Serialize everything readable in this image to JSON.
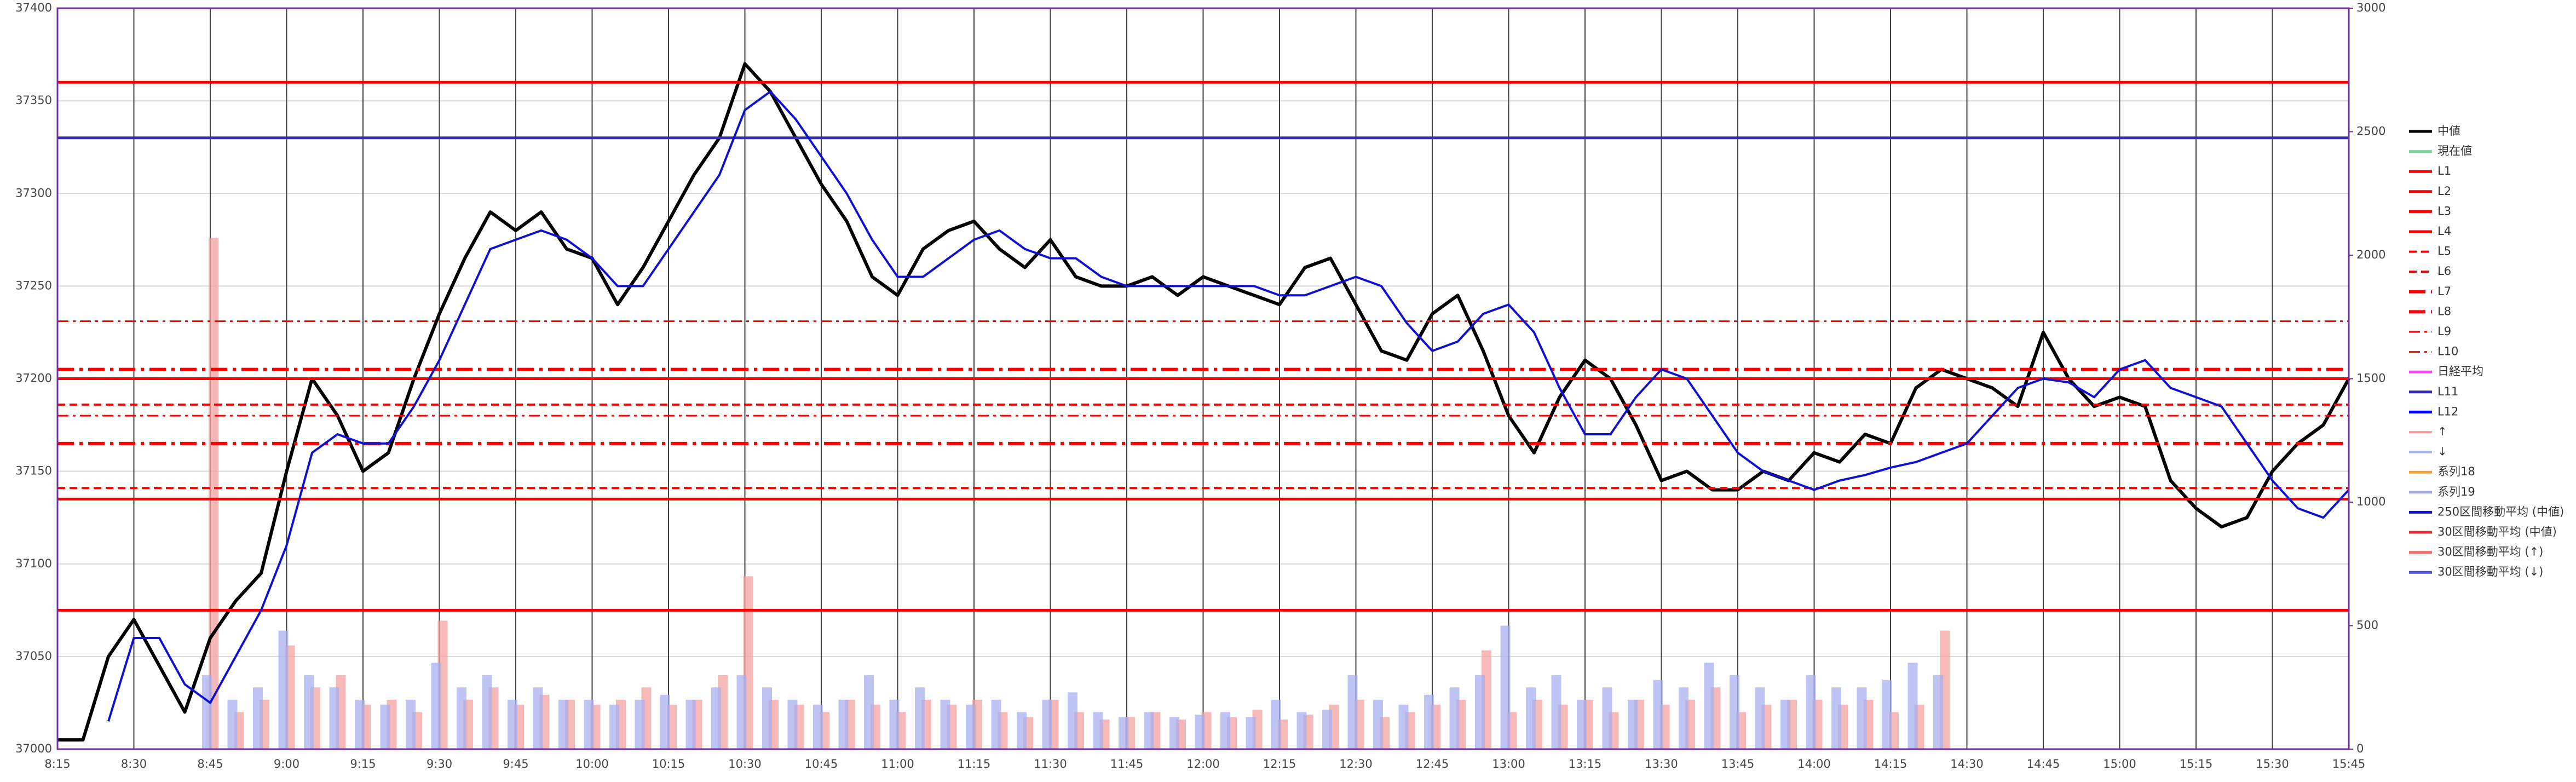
{
  "chart_data": {
    "type": "line",
    "x": [
      "8:15",
      "8:20",
      "8:25",
      "8:30",
      "8:35",
      "8:40",
      "8:45",
      "8:50",
      "8:55",
      "9:00",
      "9:05",
      "9:10",
      "9:15",
      "9:20",
      "9:25",
      "9:30",
      "9:35",
      "9:40",
      "9:45",
      "9:50",
      "9:55",
      "10:00",
      "10:05",
      "10:10",
      "10:15",
      "10:20",
      "10:25",
      "10:30",
      "10:35",
      "10:40",
      "10:45",
      "10:50",
      "10:55",
      "11:00",
      "11:05",
      "11:10",
      "11:15",
      "11:20",
      "11:25",
      "11:30",
      "11:35",
      "11:40",
      "11:45",
      "11:50",
      "11:55",
      "12:00",
      "12:05",
      "12:10",
      "12:15",
      "12:20",
      "12:25",
      "12:30",
      "12:35",
      "12:40",
      "12:45",
      "12:50",
      "12:55",
      "13:00",
      "13:05",
      "13:10",
      "13:15",
      "13:20",
      "13:25",
      "13:30",
      "13:35",
      "13:40",
      "13:45",
      "13:50",
      "13:55",
      "14:00",
      "14:05",
      "14:10",
      "14:15",
      "14:20",
      "14:25",
      "14:30",
      "14:35",
      "14:40",
      "14:45",
      "14:50",
      "14:55",
      "15:00",
      "15:05",
      "15:10",
      "15:15",
      "15:20",
      "15:25",
      "15:30",
      "15:35",
      "15:40",
      "15:45"
    ],
    "xticks": [
      "8:15",
      "8:30",
      "8:45",
      "9:00",
      "9:15",
      "9:30",
      "9:45",
      "10:00",
      "10:15",
      "10:30",
      "10:45",
      "11:00",
      "11:15",
      "11:30",
      "11:45",
      "12:00",
      "12:15",
      "12:30",
      "12:45",
      "13:00",
      "13:15",
      "13:30",
      "13:45",
      "14:00",
      "14:15",
      "14:30",
      "14:45",
      "15:00",
      "15:15",
      "15:30",
      "15:45"
    ],
    "ylim": [
      37000,
      37400
    ],
    "yticks": [
      37000,
      37050,
      37100,
      37150,
      37200,
      37250,
      37300,
      37350,
      37400
    ],
    "y2lim": [
      0,
      3000
    ],
    "y2ticks": [
      0,
      500,
      1000,
      1500,
      2000,
      2500,
      3000
    ],
    "grid": true,
    "series": [
      {
        "name": "中値",
        "color": "#000000",
        "style": "solid",
        "values": [
          37005,
          37005,
          37050,
          37070,
          37045,
          37020,
          37060,
          37080,
          37095,
          37150,
          37200,
          37180,
          37150,
          37160,
          37200,
          37235,
          37265,
          37290,
          37280,
          37290,
          37270,
          37265,
          37240,
          37260,
          37285,
          37310,
          37330,
          37370,
          37355,
          37330,
          37305,
          37285,
          37255,
          37245,
          37270,
          37280,
          37285,
          37270,
          37260,
          37275,
          37255,
          37250,
          37250,
          37255,
          37245,
          37255,
          37250,
          37245,
          37240,
          37260,
          37265,
          37240,
          37215,
          37210,
          37235,
          37245,
          37215,
          37180,
          37160,
          37190,
          37210,
          37200,
          37175,
          37145,
          37150,
          37140,
          37140,
          37150,
          37145,
          37160,
          37155,
          37170,
          37165,
          37195,
          37205,
          37200,
          37195,
          37185,
          37225,
          37200,
          37185,
          37190,
          37185,
          37145,
          37130,
          37120,
          37125,
          37150,
          37165,
          37175,
          37200
        ]
      },
      {
        "name": "現在値",
        "color": "#7fd6a0",
        "style": "solid"
      },
      {
        "name": "L1",
        "color": "#ff0000",
        "style": "solid",
        "value": 37360
      },
      {
        "name": "L2",
        "color": "#ff0000",
        "style": "solid",
        "value": 37200
      },
      {
        "name": "L3",
        "color": "#ff0000",
        "style": "solid",
        "value": 37135
      },
      {
        "name": "L4",
        "color": "#ff0000",
        "style": "solid",
        "value": 37075
      },
      {
        "name": "L5",
        "color": "#ff0000",
        "style": "dash",
        "value": 37186
      },
      {
        "name": "L6",
        "color": "#ff0000",
        "style": "dash",
        "value": 37141
      },
      {
        "name": "L7",
        "color": "#ff0000",
        "style": "dashdot",
        "value": 37205
      },
      {
        "name": "L8",
        "color": "#ff0000",
        "style": "dashdot",
        "value": 37165
      },
      {
        "name": "L9",
        "color": "#ff0000",
        "style": "dashdot-thin",
        "value": 37231
      },
      {
        "name": "L10",
        "color": "#ff0000",
        "style": "dashdot-thin",
        "value": 37180
      },
      {
        "name": "日経平均",
        "color": "#ff40ff",
        "style": "solid"
      },
      {
        "name": "L11",
        "color": "#3030b0",
        "style": "solid",
        "value": 37330
      },
      {
        "name": "L12",
        "color": "#0000ff",
        "style": "solid"
      },
      {
        "name": "↑",
        "color": "#f4a0a0",
        "style": "bar",
        "axis": "y2",
        "values": [
          null,
          null,
          null,
          null,
          null,
          null,
          2070,
          150,
          200,
          420,
          250,
          300,
          180,
          200,
          150,
          520,
          200,
          250,
          180,
          220,
          200,
          180,
          200,
          250,
          180,
          200,
          300,
          700,
          200,
          180,
          150,
          200,
          180,
          150,
          200,
          180,
          200,
          150,
          130,
          200,
          150,
          120,
          130,
          150,
          120,
          150,
          130,
          160,
          120,
          140,
          180,
          200,
          130,
          150,
          180,
          200,
          400,
          150,
          200,
          180,
          200,
          150,
          200,
          180,
          200,
          250,
          150,
          180,
          200,
          200,
          180,
          200,
          150,
          180,
          480,
          null,
          null,
          null,
          null,
          null,
          null,
          null,
          null,
          null,
          null,
          null,
          null,
          null,
          null,
          null,
          null
        ]
      },
      {
        "name": "↓",
        "color": "#a8b0f0",
        "style": "bar",
        "axis": "y2",
        "values": [
          null,
          null,
          null,
          null,
          null,
          null,
          300,
          200,
          250,
          480,
          300,
          250,
          200,
          180,
          200,
          350,
          250,
          300,
          200,
          250,
          200,
          200,
          180,
          200,
          220,
          200,
          250,
          300,
          250,
          200,
          180,
          200,
          300,
          200,
          250,
          200,
          180,
          200,
          150,
          200,
          230,
          150,
          130,
          150,
          130,
          140,
          150,
          130,
          200,
          150,
          160,
          300,
          200,
          180,
          220,
          250,
          300,
          500,
          250,
          300,
          200,
          250,
          200,
          280,
          250,
          350,
          300,
          250,
          200,
          300,
          250,
          250,
          280,
          350,
          300,
          null,
          null,
          null,
          null,
          null,
          null,
          null,
          null,
          null,
          null,
          null,
          null,
          null,
          null,
          null,
          null
        ]
      },
      {
        "name": "系列18",
        "color": "#f0a040",
        "style": "solid"
      },
      {
        "name": "系列19",
        "color": "#a0a8d8",
        "style": "solid"
      },
      {
        "name": "250区間移動平均 (中値)",
        "color": "#1010d0",
        "style": "solid",
        "values": [
          null,
          null,
          37015,
          37060,
          37060,
          37035,
          37025,
          37050,
          37075,
          37110,
          37160,
          37170,
          37165,
          37165,
          37185,
          37210,
          37240,
          37270,
          37275,
          37280,
          37275,
          37265,
          37250,
          37250,
          37270,
          37290,
          37310,
          37345,
          37355,
          37340,
          37320,
          37300,
          37275,
          37255,
          37255,
          37265,
          37275,
          37280,
          37270,
          37265,
          37265,
          37255,
          37250,
          37250,
          37250,
          37250,
          37250,
          37250,
          37245,
          37245,
          37250,
          37255,
          37250,
          37230,
          37215,
          37220,
          37235,
          37240,
          37225,
          37195,
          37170,
          37170,
          37190,
          37205,
          37200,
          37180,
          37160,
          37150,
          37145,
          37140,
          37145,
          37148,
          37152,
          37155,
          37160,
          37165,
          37180,
          37195,
          37200,
          37198,
          37190,
          37205,
          37210,
          37195,
          37190,
          37185,
          37165,
          37145,
          37130,
          37125,
          37140
        ]
      },
      {
        "name": "30区間移動平均 (中値)",
        "color": "#e03030",
        "style": "solid"
      },
      {
        "name": "30区間移動平均 (↑)",
        "color": "#f07070",
        "style": "solid"
      },
      {
        "name": "30区間移動平均 (↓)",
        "color": "#5050e0",
        "style": "solid"
      }
    ]
  }
}
